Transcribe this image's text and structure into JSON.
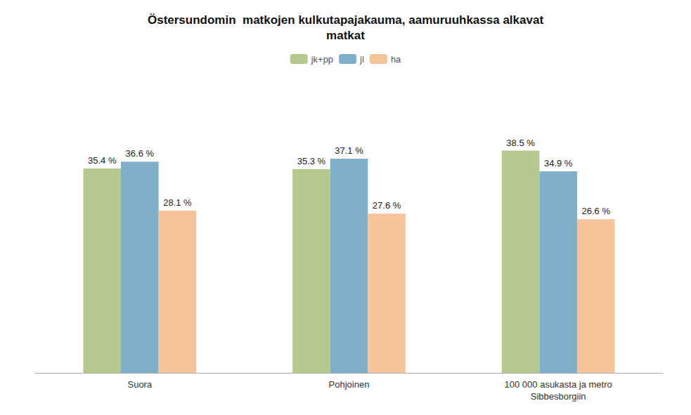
{
  "chart_data": {
    "type": "bar",
    "title": "Östersundomin  matkojen kulkutapajakauma, aamuruuhkassa alkavat\nmatkat",
    "categories": [
      "Suora",
      "Pohjoinen",
      "100 000 asukasta ja metro\nSibbesborgiin"
    ],
    "series": [
      {
        "name": "jk+pp",
        "color": "#b5c98e",
        "values": [
          35.4,
          35.3,
          38.5
        ],
        "value_labels": [
          "35.4 %",
          "35.3 %",
          "38.5 %"
        ]
      },
      {
        "name": "jl",
        "color": "#7fafc9",
        "values": [
          36.6,
          37.1,
          34.9
        ],
        "value_labels": [
          "36.6 %",
          "37.1 %",
          "34.9 %"
        ]
      },
      {
        "name": "ha",
        "color": "#f5c49a",
        "values": [
          28.1,
          27.6,
          26.6
        ],
        "value_labels": [
          "28.1 %",
          "27.6 %",
          "26.6 %"
        ]
      }
    ],
    "ylim": [
      0,
      50
    ],
    "grid": false,
    "legend": "top",
    "data_labels": true,
    "tick_labels": "x"
  }
}
